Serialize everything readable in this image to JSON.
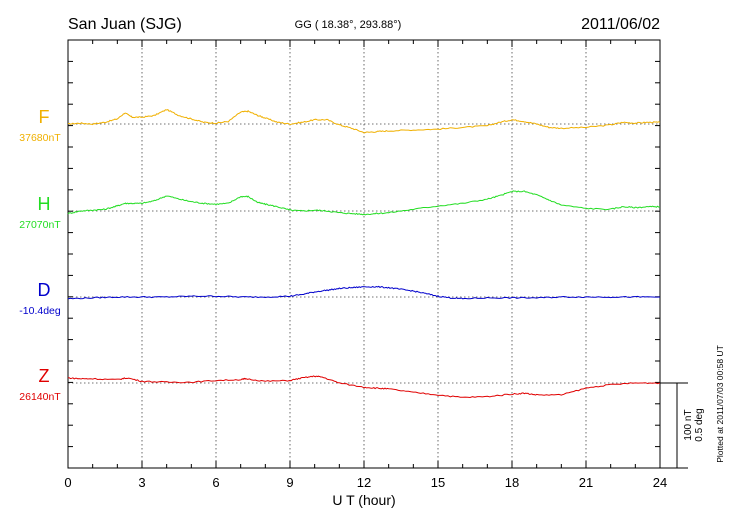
{
  "header": {
    "station": "San Juan (SJG)",
    "coords": "GG ( 18.38°, 293.88°)",
    "date": "2011/06/02"
  },
  "footnote": "Plotted at 2011/07/03 00:58 UT",
  "scale": {
    "nt": "100 nT",
    "deg": "0.5 deg"
  },
  "chart_data": {
    "type": "line",
    "xlabel": "U T (hour)",
    "xlim": [
      0,
      24
    ],
    "xticks": [
      0,
      3,
      6,
      9,
      12,
      15,
      18,
      21,
      24
    ],
    "xtick_labels": [
      "0",
      "3",
      "6",
      "9",
      "12",
      "15",
      "18",
      "21",
      "24"
    ],
    "grid": true,
    "series": [
      {
        "name": "F",
        "baseline_label": "37680nT",
        "color": "#f0b000",
        "x": [
          0,
          0.5,
          1,
          1.5,
          2,
          2.3,
          2.6,
          3,
          3.5,
          4,
          4.5,
          5,
          5.5,
          6,
          6.5,
          7,
          7.3,
          7.7,
          8,
          8.5,
          9,
          9.5,
          10,
          10.5,
          11,
          11.5,
          12,
          12.5,
          13,
          14,
          15,
          16,
          17,
          17.5,
          18,
          18.5,
          19,
          19.5,
          20,
          21,
          22,
          22.5,
          23,
          23.5,
          24
        ],
        "values": [
          0,
          1,
          0,
          2,
          6,
          13,
          8,
          8,
          10,
          17,
          10,
          6,
          2,
          1,
          3,
          14,
          15,
          10,
          7,
          2,
          0,
          2,
          5,
          5,
          -1,
          -5,
          -10,
          -9,
          -8,
          -7,
          -6,
          -4,
          -2,
          2,
          5,
          3,
          0,
          -4,
          -5,
          -4,
          -1,
          2,
          1,
          2,
          2
        ]
      },
      {
        "name": "H",
        "baseline_label": "27070nT",
        "color": "#22dd22",
        "x": [
          0,
          0.5,
          1,
          1.5,
          2,
          2.3,
          2.6,
          3,
          3.5,
          4,
          4.5,
          5,
          5.5,
          6,
          6.5,
          7,
          7.3,
          7.7,
          8,
          8.5,
          9,
          9.5,
          10,
          10.5,
          11,
          11.5,
          12,
          12.5,
          13,
          14,
          15,
          16,
          17,
          17.5,
          18,
          18.5,
          19,
          19.5,
          20,
          21,
          22,
          22.5,
          23,
          23.5,
          24
        ],
        "values": [
          -3,
          0,
          1,
          2,
          6,
          9,
          9,
          9,
          12,
          18,
          14,
          11,
          9,
          8,
          9,
          17,
          17,
          10,
          8,
          5,
          1,
          0,
          1,
          0,
          -2,
          -3,
          -4,
          -3,
          -2,
          2,
          6,
          9,
          14,
          18,
          23,
          23,
          19,
          13,
          7,
          3,
          2,
          5,
          4,
          5,
          5
        ]
      },
      {
        "name": "D",
        "baseline_label": "-10.4deg",
        "color": "#0000cc",
        "x": [
          0,
          1,
          2,
          3,
          4,
          5,
          6,
          7,
          8,
          9,
          9.5,
          10,
          10.5,
          11,
          11.5,
          12,
          12.5,
          13,
          13.5,
          14,
          14.5,
          15,
          15.5,
          16,
          17,
          18,
          19,
          20,
          21,
          22,
          23,
          24
        ],
        "values": [
          -2,
          -1,
          0,
          0,
          0,
          1,
          1,
          0,
          0,
          1,
          3,
          6,
          8,
          10,
          11,
          12,
          12,
          11,
          9,
          7,
          4,
          1,
          -1,
          -2,
          -1,
          -1,
          -1,
          0,
          0,
          0,
          0,
          0
        ]
      },
      {
        "name": "Z",
        "baseline_label": "26140nT",
        "color": "#e00000",
        "x": [
          0,
          0.5,
          1,
          2,
          2.4,
          3,
          4,
          5,
          6,
          7,
          7.2,
          8,
          9,
          9.5,
          10,
          10.3,
          11,
          12,
          12.5,
          13,
          14,
          15,
          16,
          17,
          18,
          18.5,
          19,
          20,
          21,
          22,
          23,
          24
        ],
        "values": [
          6,
          5,
          5,
          4,
          6,
          2,
          1,
          1,
          3,
          4,
          5,
          2,
          3,
          6,
          8,
          7,
          0,
          -5,
          -6,
          -7,
          -11,
          -14,
          -17,
          -16,
          -13,
          -12,
          -14,
          -14,
          -6,
          -2,
          0,
          0
        ]
      }
    ]
  }
}
